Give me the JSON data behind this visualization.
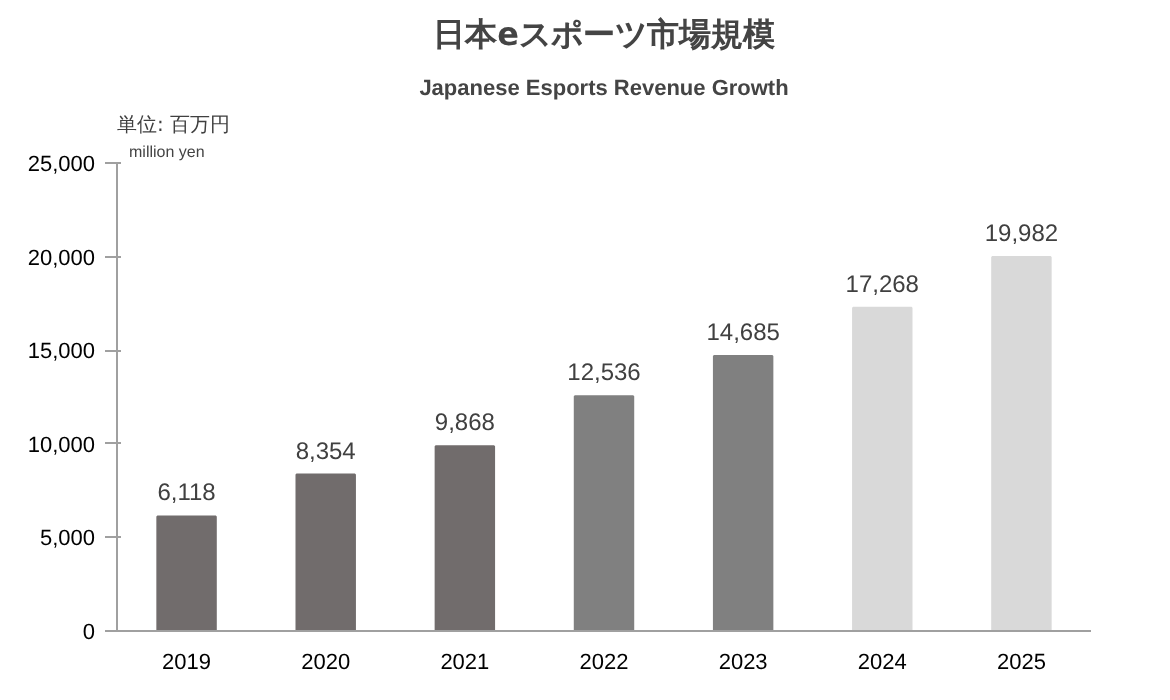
{
  "chart_data": {
    "type": "bar",
    "title": "日本eスポーツ市場規模",
    "subtitle": "Japanese Esports Revenue Growth",
    "ylabel": "単位: 百万円",
    "annotations": [
      "million yen"
    ],
    "categories": [
      "2019",
      "2020",
      "2021",
      "2022",
      "2023",
      "2024",
      "2025"
    ],
    "values": [
      6118,
      8354,
      9868,
      12536,
      14685,
      17268,
      19982
    ],
    "colors": [
      "#716c6c",
      "#716c6c",
      "#716c6c",
      "#808080",
      "#808080",
      "#d9d9d9",
      "#d9d9d9"
    ],
    "ylim": [
      0,
      25000
    ],
    "yticks": [
      {
        "value": 0,
        "label": "0"
      },
      {
        "value": 5000,
        "label": "5,000"
      },
      {
        "value": 10000,
        "label": "10,000"
      },
      {
        "value": 15000,
        "label": "15,000"
      },
      {
        "value": 20000,
        "label": "20,000"
      },
      {
        "value": 25000,
        "label": "25,000"
      }
    ],
    "value_labels": [
      "6,118",
      "8,354",
      "9,868",
      "12,536",
      "14,685",
      "17,268",
      "19,982"
    ],
    "grid": false
  }
}
